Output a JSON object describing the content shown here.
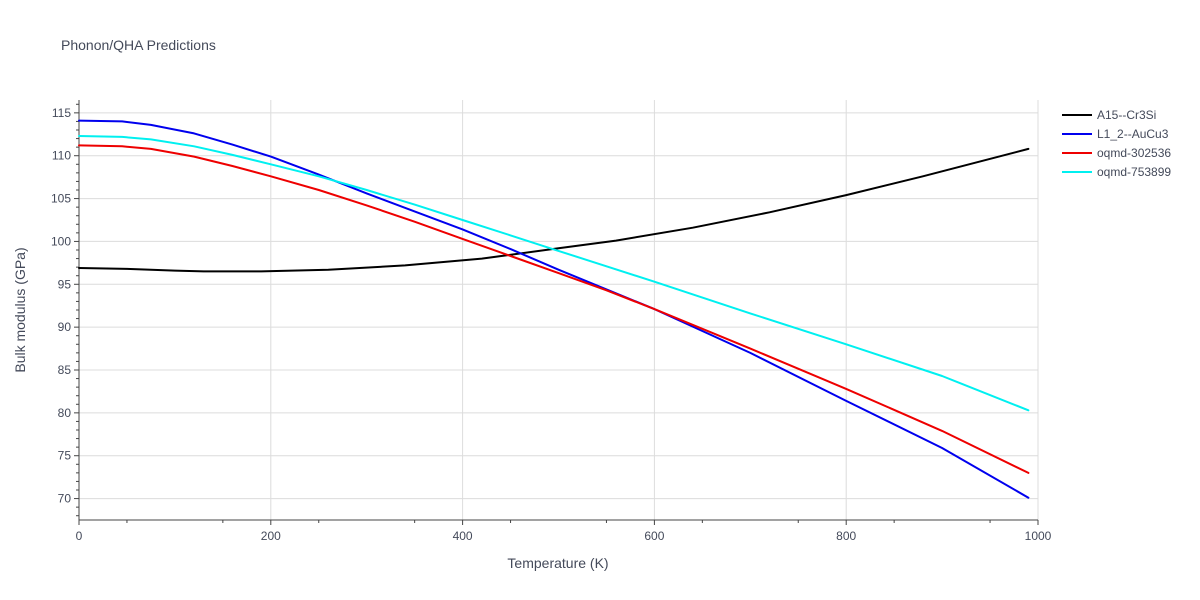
{
  "chart_data": {
    "type": "line",
    "title": "Phonon/QHA Predictions",
    "xlabel": "Temperature (K)",
    "ylabel": "Bulk modulus (GPa)",
    "xlim": [
      0,
      1000
    ],
    "ylim": [
      67.5,
      116.5
    ],
    "xticks": [
      0,
      200,
      400,
      600,
      800,
      1000
    ],
    "yticks": [
      70,
      75,
      80,
      85,
      90,
      95,
      100,
      105,
      110,
      115
    ],
    "grid": true,
    "legend_position": "top-right",
    "series": [
      {
        "name": "A15--Cr3Si",
        "color": "#000000",
        "x": [
          0,
          50,
          100,
          130,
          190,
          260,
          340,
          420,
          500,
          560,
          640,
          720,
          800,
          880,
          990
        ],
        "y": [
          96.9,
          96.8,
          96.6,
          96.5,
          96.5,
          96.7,
          97.2,
          98.0,
          99.2,
          100.1,
          101.6,
          103.4,
          105.4,
          107.6,
          110.8
        ]
      },
      {
        "name": "L1_2--AuCu3",
        "color": "#0000ee",
        "x": [
          0,
          45,
          75,
          120,
          160,
          200,
          250,
          300,
          350,
          400,
          450,
          500,
          550,
          600,
          700,
          800,
          900,
          990
        ],
        "y": [
          114.1,
          114.0,
          113.6,
          112.6,
          111.3,
          109.9,
          107.8,
          105.6,
          103.5,
          101.4,
          99.1,
          96.7,
          94.4,
          92.1,
          87.0,
          81.4,
          75.9,
          70.1
        ]
      },
      {
        "name": "oqmd-302536",
        "color": "#ee0000",
        "x": [
          0,
          45,
          75,
          120,
          160,
          200,
          250,
          300,
          350,
          400,
          450,
          500,
          550,
          600,
          700,
          800,
          900,
          990
        ],
        "y": [
          111.2,
          111.1,
          110.8,
          109.9,
          108.8,
          107.6,
          106.0,
          104.2,
          102.3,
          100.3,
          98.3,
          96.3,
          94.3,
          92.1,
          87.5,
          82.8,
          77.9,
          73.0
        ]
      },
      {
        "name": "oqmd-753899",
        "color": "#00f0f0",
        "x": [
          0,
          45,
          75,
          120,
          160,
          200,
          250,
          300,
          350,
          400,
          450,
          500,
          550,
          600,
          700,
          800,
          900,
          990
        ],
        "y": [
          112.3,
          112.2,
          111.9,
          111.1,
          110.1,
          109.0,
          107.6,
          106.0,
          104.3,
          102.5,
          100.7,
          98.9,
          97.1,
          95.3,
          91.6,
          88.0,
          84.3,
          80.3
        ]
      }
    ]
  }
}
